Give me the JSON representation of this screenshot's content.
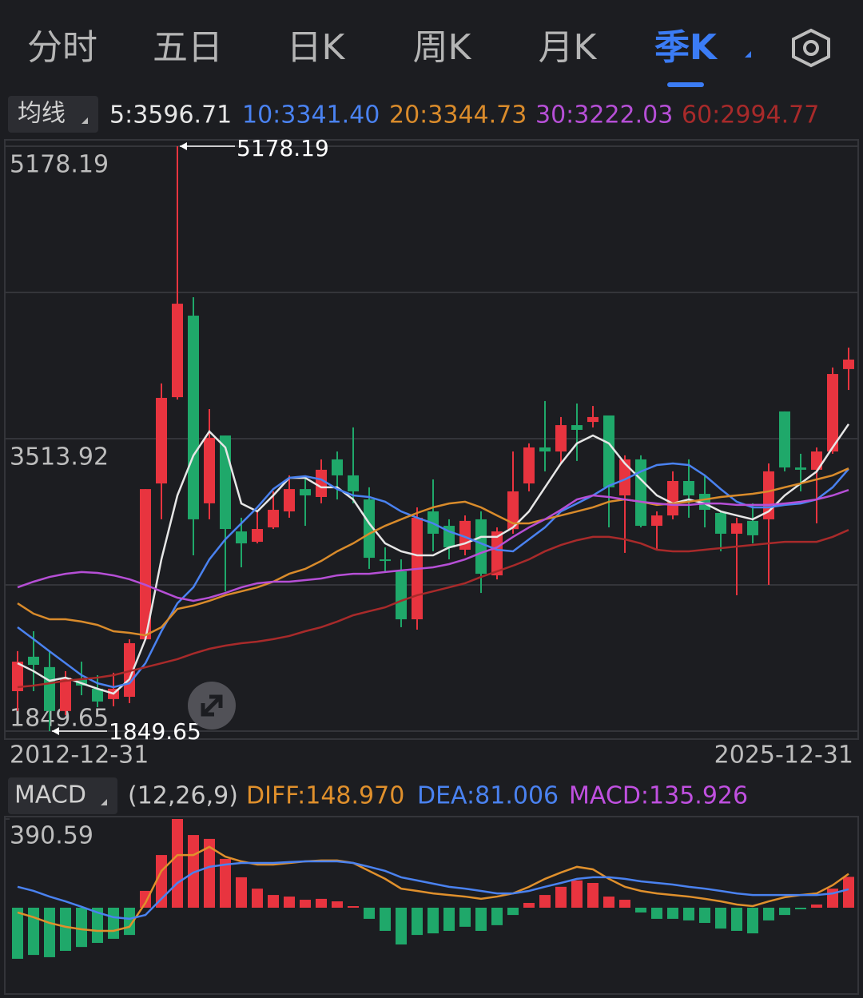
{
  "tabs": [
    "分时",
    "五日",
    "日K",
    "周K",
    "月K",
    "季K"
  ],
  "active_tab": 5,
  "ma_selector": "均线",
  "ma_legend": [
    "5:3596.71",
    "10:3341.40",
    "20:3344.73",
    "30:3222.03",
    "60:2994.77"
  ],
  "macd_selector": "MACD",
  "macd_legend": [
    {
      "text": "(12,26,9)",
      "color": "#c8c8c8"
    },
    {
      "text": "DIFF:148.970",
      "color": "#e0902c"
    },
    {
      "text": "DEA:81.006",
      "color": "#4a82f0"
    },
    {
      "text": "MACD:135.926",
      "color": "#c050e0"
    }
  ],
  "chart_data": [
    {
      "type": "candlestick",
      "categories": [
        "2012-12-31",
        null,
        null,
        null,
        null,
        null,
        null,
        null,
        null,
        null,
        null,
        null,
        null,
        null,
        null,
        null,
        null,
        null,
        null,
        null,
        null,
        null,
        null,
        null,
        null,
        null,
        null,
        null,
        null,
        null,
        null,
        null,
        null,
        null,
        null,
        null,
        null,
        null,
        null,
        null,
        null,
        null,
        null,
        null,
        null,
        null,
        null,
        null,
        null,
        null,
        null,
        null,
        "2025-12-31"
      ],
      "open": [
        2077,
        2273,
        2214,
        1964,
        2145,
        2091,
        2032,
        2045,
        2372,
        3259,
        3750,
        4214,
        3146,
        3532,
        2986,
        2927,
        3009,
        3100,
        3227,
        3182,
        3396,
        3305,
        3168,
        2827,
        2759,
        2486,
        3100,
        3018,
        2882,
        3055,
        2736,
        2999,
        3259,
        3464,
        3441,
        3591,
        3609,
        3646,
        3191,
        3396,
        3018,
        3077,
        3273,
        3200,
        3091,
        2973,
        3046,
        3055,
        3669,
        3350,
        3337,
        3441,
        3910
      ],
      "high": [
        2305,
        2418,
        2305,
        2191,
        2245,
        2168,
        2182,
        2372,
        3227,
        3828,
        5178.19,
        4319,
        3682,
        3532,
        3064,
        3100,
        3214,
        3305,
        3291,
        3396,
        3441,
        3578,
        3237,
        2895,
        2827,
        3123,
        3282,
        3055,
        3077,
        3100,
        3009,
        3441,
        3487,
        3728,
        3637,
        3714,
        3700,
        3646,
        3419,
        3419,
        3100,
        3328,
        3396,
        3305,
        3100,
        3064,
        3146,
        3373,
        3669,
        3428,
        3464,
        3919,
        4032
      ],
      "low": [
        1964,
        2077,
        1849.65,
        1941,
        2054,
        1986,
        1991,
        2009,
        2395,
        3055,
        3737,
        2850,
        3055,
        2645,
        2782,
        2918,
        3000,
        3064,
        3018,
        3146,
        3168,
        3146,
        2773,
        2759,
        2441,
        2427,
        2873,
        2827,
        2850,
        2636,
        2713,
        2973,
        3214,
        3328,
        3373,
        3387,
        3578,
        3009,
        2864,
        3009,
        2882,
        3055,
        3064,
        3009,
        2873,
        2623,
        2918,
        2682,
        3328,
        3214,
        3032,
        3428,
        3791
      ],
      "close": [
        2245,
        2227,
        1964,
        2154,
        2109,
        2018,
        2091,
        2350,
        3227,
        3746,
        4282,
        3055,
        3519,
        3000,
        2918,
        3000,
        3109,
        3227,
        3191,
        3337,
        3305,
        3214,
        2836,
        2818,
        2486,
        3064,
        2973,
        2895,
        3046,
        2745,
        2986,
        3214,
        3464,
        3441,
        3591,
        3564,
        3637,
        3237,
        3396,
        3018,
        3077,
        3273,
        3191,
        3109,
        2973,
        3032,
        2964,
        3328,
        3350,
        3337,
        3441,
        3882,
        3964
      ],
      "up_color": "#e8343f",
      "down_color": "#1fa86a",
      "ylim": [
        1849.65,
        5178.19
      ],
      "yticks": [
        5178.19,
        3513.92,
        1849.65
      ],
      "ygrid": [
        4346,
        2682
      ],
      "high_label": "5178.19",
      "low_label": "1849.65",
      "lines": [
        {
          "color": "#e6e6e6",
          "values": [
            2236,
            2191,
            2136,
            2154,
            2122,
            2091,
            2063,
            2145,
            2373,
            2827,
            3191,
            3418,
            3555,
            3464,
            3145,
            3100,
            3191,
            3291,
            3291,
            3237,
            3237,
            3168,
            3032,
            2918,
            2873,
            2850,
            2850,
            2895,
            2918,
            2955,
            2955,
            3009,
            3100,
            3237,
            3373,
            3487,
            3532,
            3487,
            3373,
            3282,
            3191,
            3145,
            3168,
            3145,
            3100,
            3077,
            3055,
            3100,
            3191,
            3259,
            3327,
            3464,
            3596.71
          ]
        },
        {
          "color": "#4a82f0",
          "values": [
            2441,
            2373,
            2304,
            2236,
            2168,
            2122,
            2100,
            2122,
            2236,
            2418,
            2577,
            2668,
            2827,
            2941,
            3032,
            3123,
            3227,
            3291,
            3300,
            3282,
            3227,
            3191,
            3182,
            3155,
            3100,
            3064,
            3032,
            2986,
            2955,
            2918,
            2882,
            2873,
            2941,
            3009,
            3100,
            3145,
            3191,
            3246,
            3282,
            3327,
            3364,
            3373,
            3364,
            3305,
            3227,
            3155,
            3123,
            3123,
            3137,
            3145,
            3168,
            3237,
            3341.4
          ]
        },
        {
          "color": "#d98b2b",
          "values": [
            2577,
            2518,
            2486,
            2486,
            2473,
            2454,
            2418,
            2409,
            2395,
            2441,
            2545,
            2564,
            2591,
            2623,
            2645,
            2668,
            2700,
            2745,
            2773,
            2818,
            2873,
            2918,
            2973,
            3018,
            3055,
            3091,
            3123,
            3145,
            3155,
            3123,
            3077,
            3032,
            3032,
            3055,
            3077,
            3100,
            3123,
            3155,
            3168,
            3155,
            3137,
            3145,
            3155,
            3168,
            3182,
            3191,
            3200,
            3214,
            3237,
            3259,
            3282,
            3305,
            3344.73
          ]
        },
        {
          "color": "#b64fd6",
          "values": [
            2668,
            2700,
            2727,
            2745,
            2755,
            2750,
            2736,
            2714,
            2682,
            2645,
            2609,
            2591,
            2609,
            2636,
            2668,
            2691,
            2700,
            2700,
            2709,
            2718,
            2736,
            2745,
            2745,
            2755,
            2764,
            2773,
            2782,
            2800,
            2827,
            2864,
            2895,
            2955,
            3009,
            3055,
            3109,
            3168,
            3191,
            3182,
            3168,
            3155,
            3145,
            3137,
            3137,
            3145,
            3145,
            3137,
            3137,
            3137,
            3145,
            3155,
            3168,
            3191,
            3222.03
          ]
        },
        {
          "color": "#a82a2a",
          "values": [
            2100,
            2109,
            2122,
            2136,
            2145,
            2154,
            2168,
            2191,
            2213,
            2236,
            2259,
            2291,
            2318,
            2336,
            2350,
            2359,
            2373,
            2391,
            2418,
            2441,
            2473,
            2509,
            2532,
            2554,
            2591,
            2623,
            2645,
            2668,
            2691,
            2727,
            2759,
            2791,
            2827,
            2873,
            2909,
            2936,
            2955,
            2955,
            2941,
            2918,
            2882,
            2873,
            2873,
            2882,
            2891,
            2900,
            2909,
            2918,
            2927,
            2927,
            2927,
            2955,
            2994.77
          ]
        }
      ]
    },
    {
      "type": "bar",
      "values": [
        -225,
        -208,
        -218,
        -190,
        -173,
        -155,
        -137,
        -120,
        74,
        232,
        390.59,
        320,
        303,
        215,
        134,
        84,
        56,
        49,
        35,
        39,
        28,
        7,
        -49,
        -102,
        -162,
        -120,
        -113,
        -102,
        -84,
        -102,
        -77,
        -32,
        21,
        56,
        92,
        120,
        109,
        49,
        35,
        -21,
        -49,
        -49,
        -56,
        -67,
        -92,
        -102,
        -113,
        -56,
        -32,
        -7,
        14,
        84,
        135.926
      ],
      "up_color": "#e8343f",
      "down_color": "#1fa86a",
      "ylim": [
        -366,
        390.59
      ],
      "yticks": [
        390.59
      ],
      "lines": [
        {
          "color": "#e0902c",
          "values": [
            -21,
            -42,
            -67,
            -84,
            -95,
            -102,
            -102,
            -84,
            21,
            162,
            232,
            232,
            268,
            225,
            204,
            190,
            190,
            197,
            204,
            208,
            208,
            197,
            162,
            127,
            84,
            74,
            63,
            56,
            49,
            39,
            49,
            63,
            92,
            127,
            155,
            180,
            169,
            127,
            92,
            74,
            63,
            56,
            49,
            39,
            28,
            14,
            7,
            28,
            46,
            56,
            63,
            99,
            148.97
          ]
        },
        {
          "color": "#4a82f0",
          "values": [
            92,
            74,
            49,
            28,
            4,
            -21,
            -42,
            -49,
            -32,
            39,
            109,
            155,
            180,
            190,
            197,
            197,
            197,
            201,
            204,
            204,
            204,
            197,
            180,
            162,
            134,
            120,
            106,
            92,
            84,
            74,
            63,
            63,
            74,
            92,
            109,
            127,
            134,
            134,
            127,
            116,
            109,
            102,
            92,
            84,
            74,
            63,
            56,
            56,
            56,
            56,
            56,
            63,
            81.006
          ]
        }
      ]
    }
  ]
}
